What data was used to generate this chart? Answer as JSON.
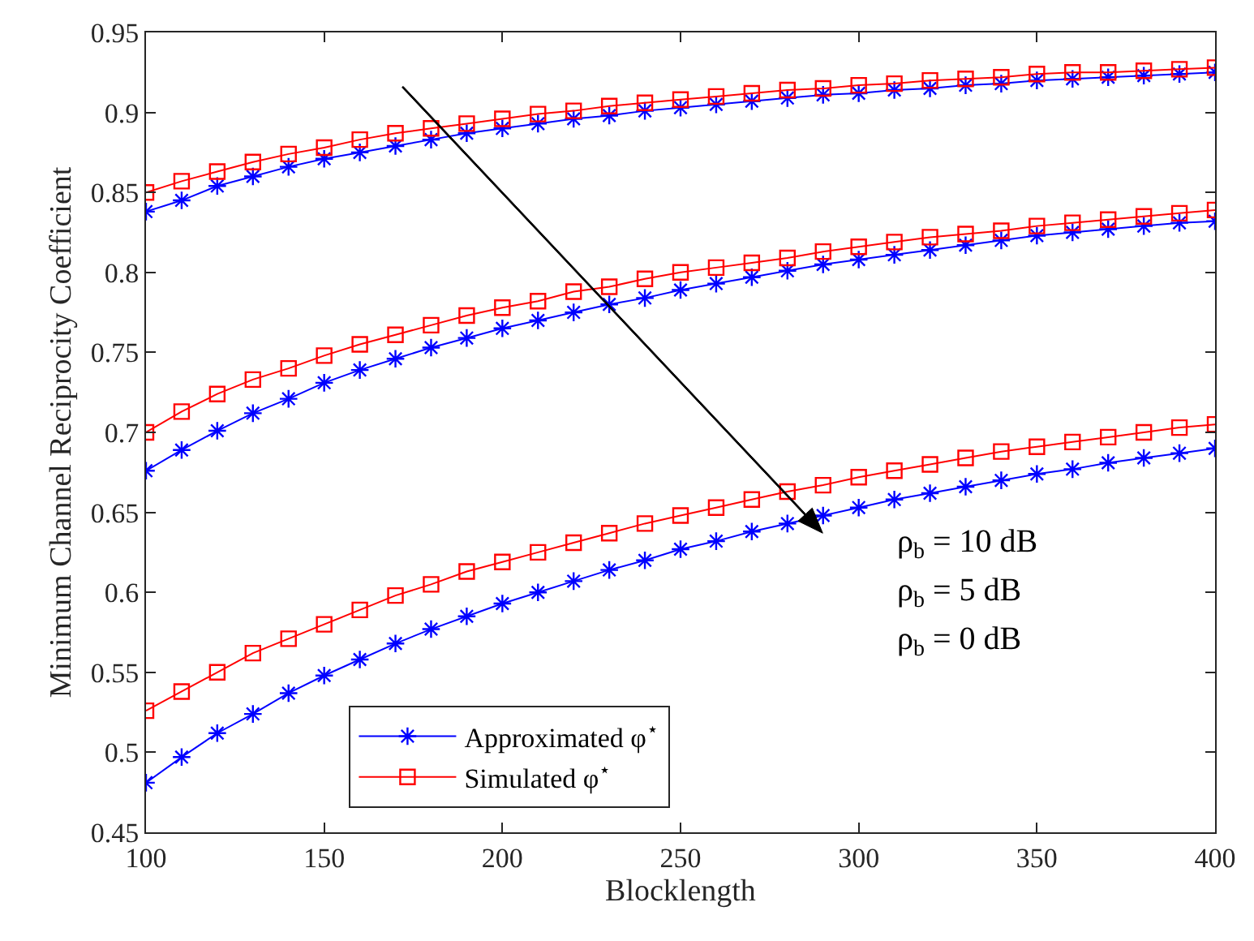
{
  "chart_data": {
    "type": "line",
    "xlabel": "Blocklength",
    "ylabel": "Minimum Channel Reciprocity Coefficient",
    "x": [
      100,
      110,
      120,
      130,
      140,
      150,
      160,
      170,
      180,
      190,
      200,
      210,
      220,
      230,
      240,
      250,
      260,
      270,
      280,
      290,
      300,
      310,
      320,
      330,
      340,
      350,
      360,
      370,
      380,
      390,
      400
    ],
    "series": [
      {
        "name": "Approximated φ$^{⋆}$",
        "color": "#0000ff",
        "marker": "cross",
        "values": [
          0.838,
          0.845,
          0.854,
          0.86,
          0.866,
          0.871,
          0.875,
          0.879,
          0.883,
          0.887,
          0.89,
          0.893,
          0.896,
          0.898,
          0.901,
          0.903,
          0.905,
          0.907,
          0.909,
          0.911,
          0.912,
          0.914,
          0.915,
          0.917,
          0.918,
          0.92,
          0.921,
          0.922,
          0.923,
          0.924,
          0.925
        ]
      },
      {
        "name": "Simulated φ$^{⋆}$",
        "color": "#ff0000",
        "marker": "square",
        "values": [
          0.85,
          0.857,
          0.863,
          0.869,
          0.874,
          0.878,
          0.883,
          0.887,
          0.89,
          0.893,
          0.896,
          0.899,
          0.901,
          0.904,
          0.906,
          0.908,
          0.91,
          0.912,
          0.914,
          0.915,
          0.917,
          0.918,
          0.92,
          0.921,
          0.922,
          0.924,
          0.925,
          0.925,
          0.926,
          0.927,
          0.928
        ]
      },
      {
        "color": "#0000ff",
        "marker": "cross",
        "values": [
          0.676,
          0.689,
          0.701,
          0.712,
          0.721,
          0.731,
          0.739,
          0.746,
          0.753,
          0.759,
          0.765,
          0.77,
          0.775,
          0.78,
          0.784,
          0.789,
          0.793,
          0.797,
          0.801,
          0.805,
          0.808,
          0.811,
          0.814,
          0.817,
          0.82,
          0.823,
          0.825,
          0.827,
          0.829,
          0.831,
          0.832
        ]
      },
      {
        "color": "#ff0000",
        "marker": "square",
        "values": [
          0.7,
          0.713,
          0.724,
          0.733,
          0.74,
          0.748,
          0.755,
          0.761,
          0.767,
          0.773,
          0.778,
          0.782,
          0.788,
          0.791,
          0.796,
          0.8,
          0.803,
          0.806,
          0.809,
          0.813,
          0.816,
          0.819,
          0.822,
          0.824,
          0.826,
          0.829,
          0.831,
          0.833,
          0.835,
          0.837,
          0.839
        ]
      },
      {
        "color": "#0000ff",
        "marker": "cross",
        "values": [
          0.481,
          0.497,
          0.512,
          0.524,
          0.537,
          0.548,
          0.558,
          0.568,
          0.577,
          0.585,
          0.593,
          0.6,
          0.607,
          0.614,
          0.62,
          0.627,
          0.632,
          0.638,
          0.643,
          0.648,
          0.653,
          0.658,
          0.662,
          0.666,
          0.67,
          0.674,
          0.677,
          0.681,
          0.684,
          0.687,
          0.69
        ]
      },
      {
        "color": "#ff0000",
        "marker": "square",
        "values": [
          0.526,
          0.538,
          0.55,
          0.562,
          0.571,
          0.58,
          0.589,
          0.598,
          0.605,
          0.613,
          0.619,
          0.625,
          0.631,
          0.637,
          0.643,
          0.648,
          0.653,
          0.658,
          0.663,
          0.667,
          0.672,
          0.676,
          0.68,
          0.684,
          0.688,
          0.691,
          0.694,
          0.697,
          0.7,
          0.703,
          0.705
        ]
      }
    ],
    "annotations": [
      "ρ$_{b}$ = 10 dB",
      "ρ$_{b}$ = 5 dB",
      "ρ$_{b}$ = 0 dB"
    ],
    "xlim": [
      100,
      400
    ],
    "xticks": [
      100,
      150,
      200,
      250,
      300,
      350,
      400
    ],
    "ylim": [
      0.45,
      0.95
    ],
    "yticks": [
      0.45,
      0.5,
      0.55,
      0.6,
      0.65,
      0.7,
      0.75,
      0.8,
      0.85,
      0.9,
      0.95
    ],
    "legend": "bottom"
  }
}
